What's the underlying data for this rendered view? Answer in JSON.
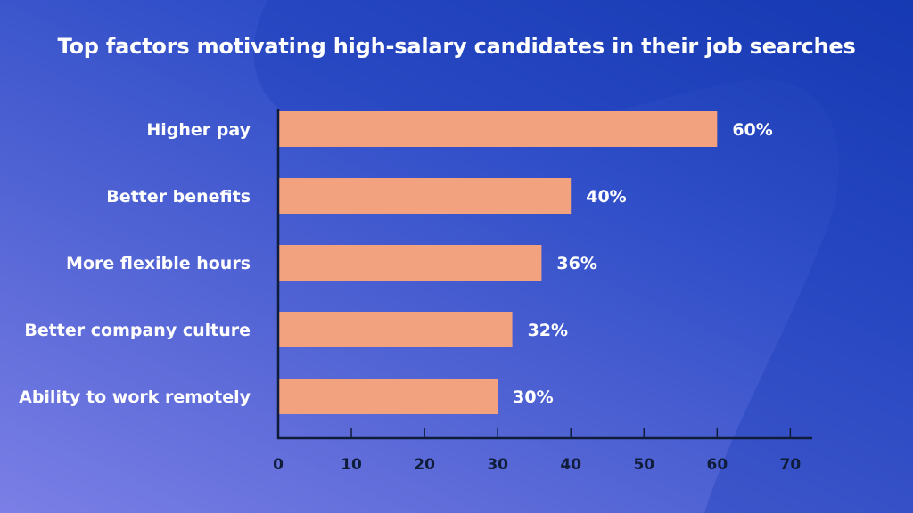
{
  "colors": {
    "bar": "#f2a27e",
    "axis": "#0f1c3a",
    "text": "#ffffff"
  },
  "chart_data": {
    "type": "bar",
    "orientation": "horizontal",
    "title": "Top factors motivating high-salary candidates in their job searches",
    "categories": [
      "Higher pay",
      "Better benefits",
      "More flexible hours",
      "Better company culture",
      "Ability to work remotely"
    ],
    "values": [
      60,
      40,
      36,
      32,
      30
    ],
    "value_labels": [
      "60%",
      "40%",
      "36%",
      "32%",
      "30%"
    ],
    "xticks": [
      0,
      10,
      20,
      30,
      40,
      50,
      60,
      70
    ],
    "xlim": [
      0,
      73
    ],
    "xlabel": "",
    "ylabel": "",
    "grid": false,
    "legend": "none"
  }
}
